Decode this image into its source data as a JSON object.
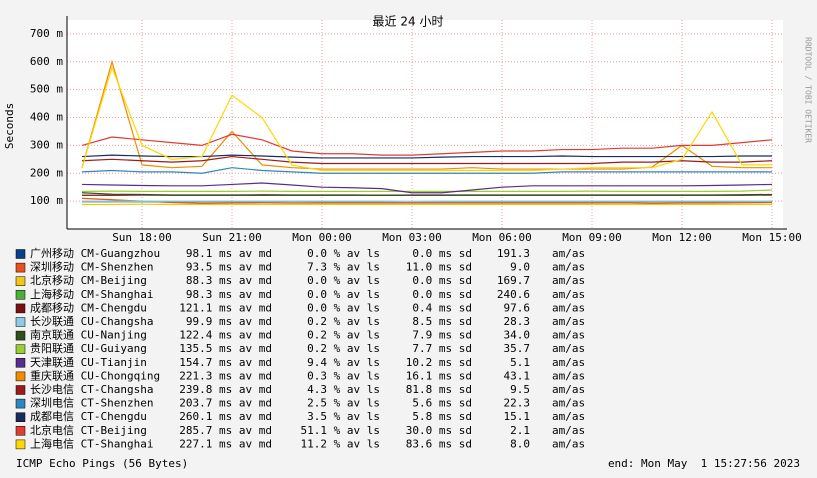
{
  "chart_data": {
    "type": "line",
    "title": "最近 24 小时",
    "y_label": "Seconds",
    "watermark": "RRDTOOL / TOBI OETIKER",
    "footer_left": "ICMP Echo Pings (56 Bytes)",
    "footer_right": "end: Mon May  1 15:27:56 2023",
    "am_as_unit": "am/as",
    "grid": true,
    "categories": [
      null,
      null,
      "Sun 18:00",
      null,
      null,
      "Sun 21:00",
      null,
      null,
      "Mon 00:00",
      null,
      null,
      "Mon 03:00",
      null,
      null,
      "Mon 06:00",
      null,
      null,
      "Mon 09:00",
      null,
      null,
      "Mon 12:00",
      null,
      null,
      "Mon 15:00"
    ],
    "ylim": [
      0,
      750
    ],
    "yticks": [
      {
        "value": 100,
        "label": "100 m"
      },
      {
        "value": 200,
        "label": "200 m"
      },
      {
        "value": 300,
        "label": "300 m"
      },
      {
        "value": 400,
        "label": "400 m"
      },
      {
        "value": 500,
        "label": "500 m"
      },
      {
        "value": 600,
        "label": "600 m"
      },
      {
        "value": 700,
        "label": "700 m"
      }
    ],
    "series": [
      {
        "name": "广州移动 CM-Guangzhou",
        "color": "#0b3e8c",
        "median": "98.1 ms av md",
        "loss": "0.0 % av ls",
        "sd": "0.0 ms sd",
        "am_as": "191.3",
        "values": [
          98,
          98,
          98,
          98,
          98,
          98,
          98,
          99,
          98,
          98,
          98,
          98,
          98,
          98,
          98,
          98,
          98,
          98,
          98,
          98,
          98,
          98,
          98,
          98
        ]
      },
      {
        "name": "深圳移动 CM-Shenzhen",
        "color": "#e8501c",
        "median": "93.5 ms av md",
        "loss": "7.3 % av ls",
        "sd": "11.0 ms sd",
        "am_as": "9.0",
        "values": [
          110,
          105,
          100,
          95,
          92,
          93,
          94,
          93,
          93,
          93,
          93,
          93,
          93,
          93,
          93,
          93,
          93,
          93,
          94,
          92,
          93,
          93,
          94,
          95
        ]
      },
      {
        "name": "北京移动 CM-Beijing",
        "color": "#f5c518",
        "median": "88.3 ms av md",
        "loss": "0.0 % av ls",
        "sd": "0.0 ms sd",
        "am_as": "169.7",
        "values": [
          88,
          88,
          89,
          88,
          88,
          88,
          88,
          88,
          88,
          88,
          88,
          88,
          88,
          88,
          88,
          88,
          88,
          88,
          88,
          88,
          88,
          88,
          88,
          88
        ]
      },
      {
        "name": "上海移动 CM-Shanghai",
        "color": "#4caf3a",
        "median": "98.3 ms av md",
        "loss": "0.0 % av ls",
        "sd": "0.0 ms sd",
        "am_as": "240.6",
        "values": [
          98,
          98,
          98,
          99,
          98,
          98,
          98,
          98,
          98,
          98,
          98,
          98,
          98,
          98,
          98,
          98,
          98,
          98,
          98,
          98,
          98,
          98,
          99,
          98
        ]
      },
      {
        "name": "成都移动 CM-Chengdu",
        "color": "#7a1010",
        "median": "121.1 ms av md",
        "loss": "0.0 % av ls",
        "sd": "0.4 ms sd",
        "am_as": "97.6",
        "values": [
          121,
          121,
          122,
          121,
          121,
          121,
          121,
          121,
          121,
          121,
          121,
          121,
          121,
          121,
          121,
          121,
          121,
          121,
          121,
          121,
          121,
          121,
          121,
          122
        ]
      },
      {
        "name": "长沙联通 CU-Changsha",
        "color": "#8ecae6",
        "median": "99.9 ms av md",
        "loss": "0.2 % av ls",
        "sd": "8.5 ms sd",
        "am_as": "28.3",
        "values": [
          100,
          100,
          100,
          100,
          100,
          100,
          100,
          100,
          100,
          100,
          100,
          99,
          100,
          100,
          100,
          100,
          100,
          100,
          100,
          100,
          100,
          100,
          100,
          100
        ]
      },
      {
        "name": "南京联通 CU-Nanjing",
        "color": "#2f4f1a",
        "median": "122.4 ms av md",
        "loss": "0.2 % av ls",
        "sd": "7.9 ms sd",
        "am_as": "34.0",
        "values": [
          130,
          125,
          124,
          122,
          122,
          122,
          123,
          122,
          122,
          122,
          121,
          122,
          122,
          122,
          122,
          122,
          122,
          122,
          122,
          122,
          122,
          122,
          123,
          124
        ]
      },
      {
        "name": "贵阳联通 CU-Guiyang",
        "color": "#9acd32",
        "median": "135.5 ms av md",
        "loss": "0.2 % av ls",
        "sd": "7.7 ms sd",
        "am_as": "35.7",
        "values": [
          135,
          136,
          135,
          135,
          135,
          135,
          136,
          135,
          135,
          135,
          135,
          135,
          135,
          135,
          135,
          135,
          135,
          136,
          135,
          135,
          135,
          135,
          136,
          140
        ]
      },
      {
        "name": "天津联通 CU-Tianjin",
        "color": "#5b2c8a",
        "median": "154.7 ms av md",
        "loss": "9.4 % av ls",
        "sd": "10.2 ms sd",
        "am_as": "5.1",
        "values": [
          160,
          158,
          156,
          155,
          155,
          160,
          165,
          158,
          150,
          148,
          145,
          130,
          130,
          140,
          150,
          155,
          155,
          155,
          155,
          155,
          155,
          156,
          158,
          160
        ]
      },
      {
        "name": "重庆联通 CU-Chongqing",
        "color": "#f08c00",
        "median": "221.3 ms av md",
        "loss": "0.3 % av ls",
        "sd": "16.1 ms sd",
        "am_as": "43.1",
        "values": [
          220,
          600,
          230,
          220,
          225,
          350,
          230,
          220,
          215,
          215,
          215,
          215,
          215,
          220,
          215,
          215,
          215,
          215,
          215,
          222,
          300,
          225,
          220,
          220
        ]
      },
      {
        "name": "长沙电信 CT-Changsha",
        "color": "#9b1b1b",
        "median": "239.8 ms av md",
        "loss": "4.3 % av ls",
        "sd": "81.8 ms sd",
        "am_as": "9.5",
        "values": [
          245,
          250,
          245,
          240,
          245,
          260,
          250,
          240,
          235,
          235,
          235,
          235,
          235,
          235,
          235,
          235,
          235,
          235,
          240,
          240,
          245,
          240,
          240,
          245
        ]
      },
      {
        "name": "深圳电信 CT-Shenzhen",
        "color": "#2e86c1",
        "median": "203.7 ms av md",
        "loss": "2.5 % av ls",
        "sd": "5.6 ms sd",
        "am_as": "22.3",
        "values": [
          205,
          210,
          205,
          205,
          200,
          220,
          210,
          205,
          200,
          200,
          200,
          200,
          200,
          200,
          200,
          200,
          205,
          205,
          205,
          205,
          205,
          205,
          205,
          205
        ]
      },
      {
        "name": "成都电信 CT-Chengdu",
        "color": "#1a2b5e",
        "median": "260.1 ms av md",
        "loss": "3.5 % av ls",
        "sd": "5.8 ms sd",
        "am_as": "15.1",
        "values": [
          260,
          265,
          262,
          260,
          260,
          265,
          262,
          258,
          255,
          255,
          255,
          255,
          258,
          260,
          260,
          260,
          262,
          260,
          260,
          260,
          260,
          260,
          262,
          262
        ]
      },
      {
        "name": "北京电信 CT-Beijing",
        "color": "#e03c31",
        "median": "285.7 ms av md",
        "loss": "51.1 % av ls",
        "sd": "30.0 ms sd",
        "am_as": "2.1",
        "values": [
          300,
          330,
          320,
          310,
          300,
          340,
          320,
          280,
          270,
          270,
          265,
          265,
          270,
          275,
          280,
          280,
          285,
          285,
          290,
          290,
          300,
          300,
          310,
          320
        ]
      },
      {
        "name": "上海电信 CT-Shanghai",
        "color": "#ffd700",
        "median": "227.1 ms av md",
        "loss": "11.2 % av ls",
        "sd": "83.6 ms sd",
        "am_as": "8.0",
        "values": [
          220,
          580,
          300,
          250,
          260,
          480,
          400,
          230,
          210,
          210,
          210,
          210,
          210,
          210,
          210,
          210,
          215,
          220,
          220,
          220,
          250,
          420,
          230,
          230
        ]
      }
    ]
  }
}
